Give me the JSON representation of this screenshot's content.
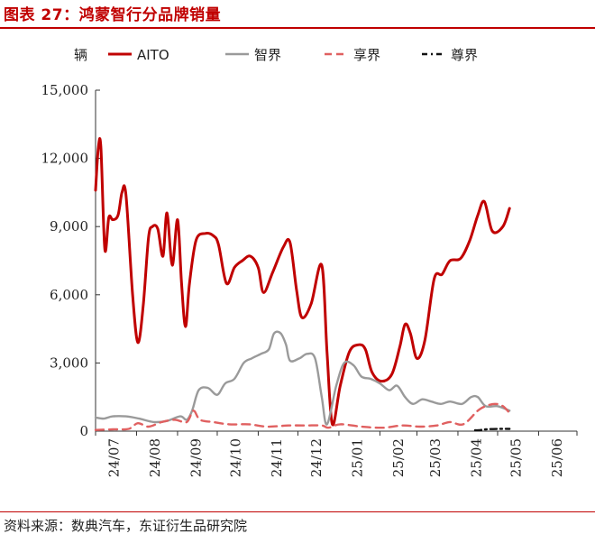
{
  "figure": {
    "title": "图表 27：鸿蒙智行分品牌销量",
    "source": "资料来源：数典汽车，东证衍生品研究院"
  },
  "chart_data": {
    "type": "line",
    "unit_label": "辆",
    "ylim": [
      0,
      15000
    ],
    "yticks": [
      0,
      3000,
      6000,
      9000,
      12000,
      15000
    ],
    "ytick_labels": [
      "0",
      "3,000",
      "6,000",
      "9,000",
      "12,000",
      "15,000"
    ],
    "xlim": [
      "2024-07-01",
      "2025-06-30"
    ],
    "xtick_labels": [
      "24/07",
      "24/08",
      "24/09",
      "24/10",
      "24/11",
      "24/12",
      "25/01",
      "25/02",
      "25/03",
      "25/04",
      "25/05",
      "25/06"
    ],
    "legend_position": "top",
    "grid": false,
    "series": [
      {
        "name": "AITO",
        "color": "#c00000",
        "style": "solid",
        "points": [
          [
            "2024-07-01",
            10600
          ],
          [
            "2024-07-03",
            12400
          ],
          [
            "2024-07-05",
            12500
          ],
          [
            "2024-07-08",
            8000
          ],
          [
            "2024-07-11",
            9400
          ],
          [
            "2024-07-14",
            9300
          ],
          [
            "2024-07-18",
            9500
          ],
          [
            "2024-07-21",
            10500
          ],
          [
            "2024-07-24",
            10400
          ],
          [
            "2024-07-29",
            6000
          ],
          [
            "2024-08-02",
            3900
          ],
          [
            "2024-08-06",
            5500
          ],
          [
            "2024-08-10",
            8500
          ],
          [
            "2024-08-13",
            9000
          ],
          [
            "2024-08-17",
            8900
          ],
          [
            "2024-08-21",
            7700
          ],
          [
            "2024-08-24",
            9600
          ],
          [
            "2024-08-28",
            7300
          ],
          [
            "2024-09-01",
            9300
          ],
          [
            "2024-09-04",
            6500
          ],
          [
            "2024-09-07",
            4600
          ],
          [
            "2024-09-10",
            6500
          ],
          [
            "2024-09-15",
            8400
          ],
          [
            "2024-09-22",
            8700
          ],
          [
            "2024-09-28",
            8600
          ],
          [
            "2024-10-02",
            8200
          ],
          [
            "2024-10-08",
            6500
          ],
          [
            "2024-10-14",
            7200
          ],
          [
            "2024-10-20",
            7500
          ],
          [
            "2024-10-26",
            7700
          ],
          [
            "2024-11-01",
            7200
          ],
          [
            "2024-11-05",
            6100
          ],
          [
            "2024-11-12",
            7000
          ],
          [
            "2024-11-20",
            8100
          ],
          [
            "2024-11-25",
            8300
          ],
          [
            "2024-11-30",
            6200
          ],
          [
            "2024-12-04",
            5000
          ],
          [
            "2024-12-11",
            5600
          ],
          [
            "2024-12-19",
            7300
          ],
          [
            "2024-12-23",
            3500
          ],
          [
            "2024-12-27",
            300
          ],
          [
            "2025-01-02",
            2000
          ],
          [
            "2025-01-09",
            3500
          ],
          [
            "2025-01-16",
            3800
          ],
          [
            "2025-01-21",
            3600
          ],
          [
            "2025-01-26",
            2600
          ],
          [
            "2025-02-02",
            2200
          ],
          [
            "2025-02-10",
            2500
          ],
          [
            "2025-02-16",
            3700
          ],
          [
            "2025-02-20",
            4700
          ],
          [
            "2025-02-24",
            4300
          ],
          [
            "2025-03-01",
            3200
          ],
          [
            "2025-03-07",
            4000
          ],
          [
            "2025-03-14",
            6700
          ],
          [
            "2025-03-20",
            6900
          ],
          [
            "2025-03-26",
            7500
          ],
          [
            "2025-04-03",
            7600
          ],
          [
            "2025-04-10",
            8400
          ],
          [
            "2025-04-16",
            9500
          ],
          [
            "2025-04-21",
            10100
          ],
          [
            "2025-04-27",
            8800
          ],
          [
            "2025-05-05",
            9000
          ],
          [
            "2025-05-10",
            9800
          ]
        ]
      },
      {
        "name": "智界",
        "color": "#9a9a9a",
        "style": "solid",
        "points": [
          [
            "2024-07-01",
            600
          ],
          [
            "2024-07-07",
            550
          ],
          [
            "2024-07-14",
            650
          ],
          [
            "2024-07-24",
            650
          ],
          [
            "2024-08-03",
            550
          ],
          [
            "2024-08-14",
            400
          ],
          [
            "2024-08-24",
            450
          ],
          [
            "2024-09-03",
            650
          ],
          [
            "2024-09-08",
            500
          ],
          [
            "2024-09-12",
            900
          ],
          [
            "2024-09-17",
            1800
          ],
          [
            "2024-09-24",
            1900
          ],
          [
            "2024-10-01",
            1600
          ],
          [
            "2024-10-07",
            2100
          ],
          [
            "2024-10-14",
            2300
          ],
          [
            "2024-10-21",
            3000
          ],
          [
            "2024-10-27",
            3200
          ],
          [
            "2024-11-03",
            3400
          ],
          [
            "2024-11-09",
            3600
          ],
          [
            "2024-11-13",
            4300
          ],
          [
            "2024-11-18",
            4300
          ],
          [
            "2024-11-22",
            3800
          ],
          [
            "2024-11-25",
            3100
          ],
          [
            "2024-12-02",
            3200
          ],
          [
            "2024-12-08",
            3400
          ],
          [
            "2024-12-14",
            3200
          ],
          [
            "2024-12-19",
            1500
          ],
          [
            "2024-12-23",
            300
          ],
          [
            "2024-12-30",
            2000
          ],
          [
            "2025-01-05",
            3000
          ],
          [
            "2025-01-12",
            2900
          ],
          [
            "2025-01-18",
            2400
          ],
          [
            "2025-01-25",
            2300
          ],
          [
            "2025-02-01",
            2100
          ],
          [
            "2025-02-08",
            1800
          ],
          [
            "2025-02-14",
            2000
          ],
          [
            "2025-02-20",
            1500
          ],
          [
            "2025-02-26",
            1200
          ],
          [
            "2025-03-05",
            1400
          ],
          [
            "2025-03-12",
            1300
          ],
          [
            "2025-03-19",
            1200
          ],
          [
            "2025-03-26",
            1300
          ],
          [
            "2025-04-04",
            1200
          ],
          [
            "2025-04-11",
            1500
          ],
          [
            "2025-04-16",
            1500
          ],
          [
            "2025-04-22",
            1100
          ],
          [
            "2025-05-01",
            1100
          ],
          [
            "2025-05-10",
            900
          ]
        ]
      },
      {
        "name": "享界",
        "color": "#e06060",
        "style": "dashed",
        "points": [
          [
            "2024-07-01",
            50
          ],
          [
            "2024-07-14",
            80
          ],
          [
            "2024-07-26",
            100
          ],
          [
            "2024-08-02",
            350
          ],
          [
            "2024-08-10",
            200
          ],
          [
            "2024-08-20",
            400
          ],
          [
            "2024-08-30",
            500
          ],
          [
            "2024-09-08",
            400
          ],
          [
            "2024-09-13",
            900
          ],
          [
            "2024-09-18",
            500
          ],
          [
            "2024-09-28",
            400
          ],
          [
            "2024-10-10",
            300
          ],
          [
            "2024-10-25",
            300
          ],
          [
            "2024-11-08",
            200
          ],
          [
            "2024-11-24",
            250
          ],
          [
            "2024-12-07",
            250
          ],
          [
            "2024-12-19",
            250
          ],
          [
            "2024-12-24",
            150
          ],
          [
            "2025-01-02",
            300
          ],
          [
            "2025-01-18",
            200
          ],
          [
            "2025-02-03",
            150
          ],
          [
            "2025-02-18",
            250
          ],
          [
            "2025-03-03",
            200
          ],
          [
            "2025-03-16",
            250
          ],
          [
            "2025-03-26",
            400
          ],
          [
            "2025-04-05",
            300
          ],
          [
            "2025-04-16",
            900
          ],
          [
            "2025-04-22",
            1100
          ],
          [
            "2025-04-29",
            1200
          ],
          [
            "2025-05-05",
            1100
          ],
          [
            "2025-05-10",
            800
          ]
        ]
      },
      {
        "name": "尊界",
        "color": "#111111",
        "style": "dashdot",
        "points": [
          [
            "2025-04-14",
            40
          ],
          [
            "2025-04-17",
            40
          ],
          [
            "2025-04-22",
            80
          ],
          [
            "2025-05-01",
            100
          ],
          [
            "2025-05-10",
            100
          ]
        ]
      }
    ]
  }
}
